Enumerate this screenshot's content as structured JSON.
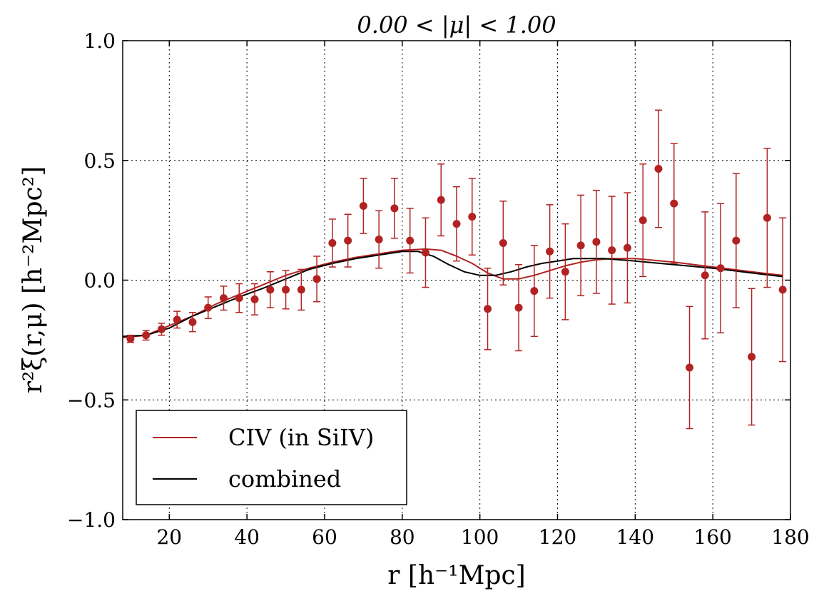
{
  "chart_data": {
    "type": "scatter",
    "title": "0.00 < |μ| < 1.00",
    "xlabel": "r [h⁻¹Mpc]",
    "ylabel": "r²ξ(r,μ) [h⁻²Mpc²]",
    "xlim": [
      8,
      180
    ],
    "ylim": [
      -1.0,
      1.0
    ],
    "xticks": [
      20,
      40,
      60,
      80,
      100,
      120,
      140,
      160,
      180
    ],
    "yticks": [
      1.0,
      0.5,
      0.0,
      -0.5,
      -1.0
    ],
    "ytick_labels": [
      "1.0",
      "0.5",
      "0.0",
      "−0.5",
      "−1.0"
    ],
    "grid": true,
    "legend_position": "bottom-left",
    "points": {
      "color": "#b22222",
      "x": [
        10,
        14,
        18,
        22,
        26,
        30,
        34,
        38,
        42,
        46,
        50,
        54,
        58,
        62,
        66,
        70,
        74,
        78,
        82,
        86,
        90,
        94,
        98,
        102,
        106,
        110,
        114,
        118,
        122,
        126,
        130,
        134,
        138,
        142,
        146,
        150,
        154,
        158,
        162,
        166,
        170,
        174,
        178
      ],
      "y": [
        -0.245,
        -0.23,
        -0.205,
        -0.165,
        -0.175,
        -0.115,
        -0.075,
        -0.075,
        -0.08,
        -0.04,
        -0.04,
        -0.04,
        0.005,
        0.155,
        0.165,
        0.31,
        0.17,
        0.3,
        0.165,
        0.115,
        0.335,
        0.235,
        0.265,
        -0.12,
        0.155,
        -0.115,
        -0.045,
        0.12,
        0.035,
        0.145,
        0.16,
        0.125,
        0.135,
        0.25,
        0.465,
        0.32,
        -0.365,
        0.02,
        0.05,
        0.165,
        -0.32,
        0.26,
        -0.04
      ],
      "err": [
        0.015,
        0.02,
        0.025,
        0.035,
        0.04,
        0.045,
        0.05,
        0.06,
        0.065,
        0.075,
        0.08,
        0.085,
        0.095,
        0.1,
        0.11,
        0.115,
        0.12,
        0.125,
        0.135,
        0.145,
        0.15,
        0.155,
        0.16,
        0.17,
        0.175,
        0.18,
        0.19,
        0.195,
        0.2,
        0.21,
        0.215,
        0.225,
        0.23,
        0.235,
        0.245,
        0.25,
        0.255,
        0.265,
        0.27,
        0.28,
        0.285,
        0.29,
        0.3
      ]
    },
    "series": [
      {
        "name": "CIV (in SiIV)",
        "color": "#b22222",
        "x": [
          8,
          14,
          20,
          26,
          32,
          38,
          44,
          50,
          56,
          62,
          68,
          74,
          80,
          86,
          90,
          94,
          98,
          102,
          106,
          110,
          114,
          118,
          122,
          126,
          130,
          134,
          140,
          150,
          160,
          170,
          178
        ],
        "y": [
          -0.24,
          -0.23,
          -0.19,
          -0.15,
          -0.1,
          -0.06,
          -0.02,
          0.02,
          0.05,
          0.075,
          0.095,
          0.11,
          0.125,
          0.13,
          0.125,
          0.1,
          0.07,
          0.03,
          0.005,
          0.005,
          0.02,
          0.04,
          0.06,
          0.075,
          0.085,
          0.09,
          0.09,
          0.075,
          0.055,
          0.035,
          0.02
        ]
      },
      {
        "name": "combined",
        "color": "#000000",
        "x": [
          8,
          14,
          20,
          26,
          32,
          38,
          44,
          50,
          56,
          62,
          68,
          74,
          80,
          84,
          88,
          92,
          96,
          100,
          104,
          108,
          112,
          116,
          120,
          124,
          128,
          132,
          136,
          140,
          150,
          160,
          170,
          178
        ],
        "y": [
          -0.235,
          -0.23,
          -0.2,
          -0.15,
          -0.11,
          -0.07,
          -0.035,
          0.005,
          0.045,
          0.07,
          0.09,
          0.105,
          0.12,
          0.12,
          0.1,
          0.065,
          0.035,
          0.02,
          0.02,
          0.035,
          0.055,
          0.07,
          0.08,
          0.09,
          0.09,
          0.09,
          0.085,
          0.08,
          0.065,
          0.05,
          0.03,
          0.015
        ]
      }
    ]
  }
}
